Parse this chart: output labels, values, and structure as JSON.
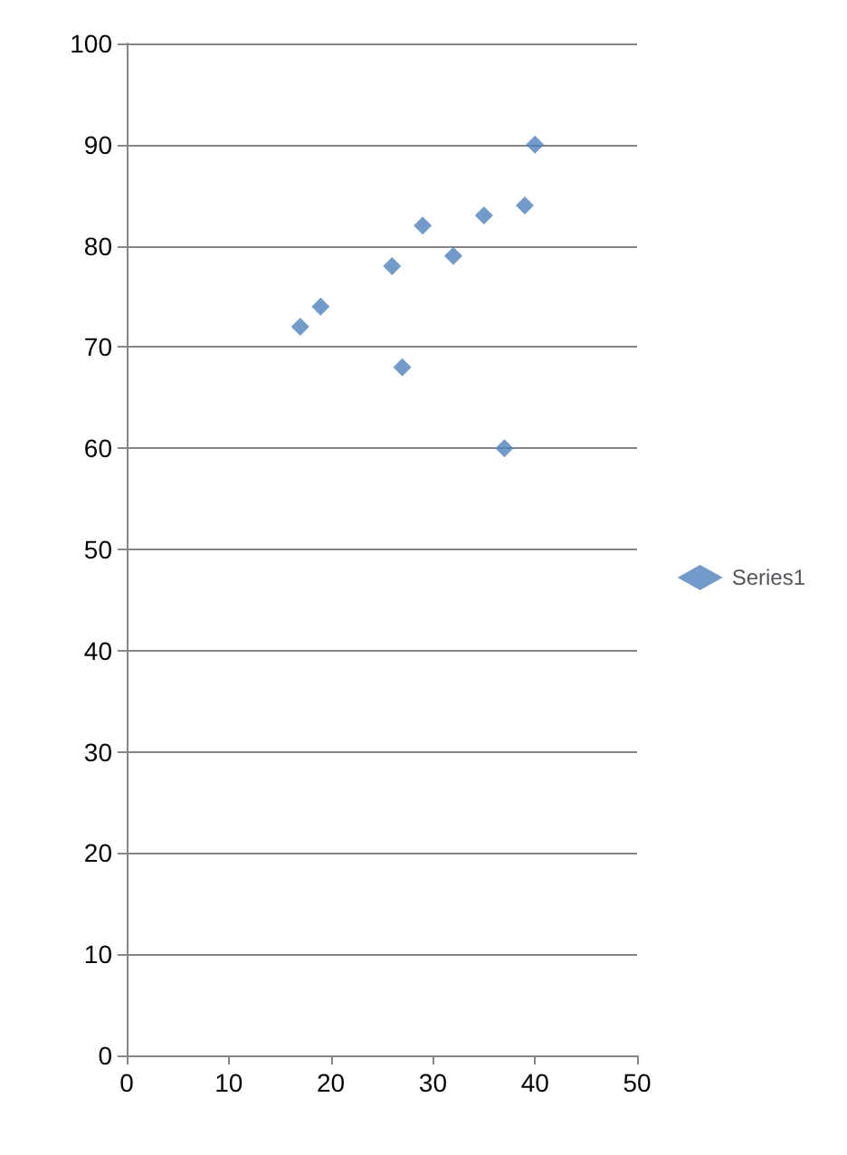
{
  "chart_data": {
    "type": "scatter",
    "x": [
      17,
      19,
      26,
      27,
      29,
      32,
      35,
      37,
      39,
      40
    ],
    "series": [
      {
        "name": "Series1",
        "color": "#4f81bd",
        "values": [
          72,
          74,
          78,
          68,
          82,
          79,
          83,
          60,
          84,
          90
        ]
      }
    ],
    "xlim": [
      0,
      50
    ],
    "xticks": [
      0,
      10,
      20,
      30,
      40,
      50
    ],
    "ylim": [
      0,
      100
    ],
    "yticks": [
      0,
      10,
      20,
      30,
      40,
      50,
      60,
      70,
      80,
      90,
      100
    ],
    "grid": "y",
    "legend": "right",
    "marker": "diamond"
  }
}
